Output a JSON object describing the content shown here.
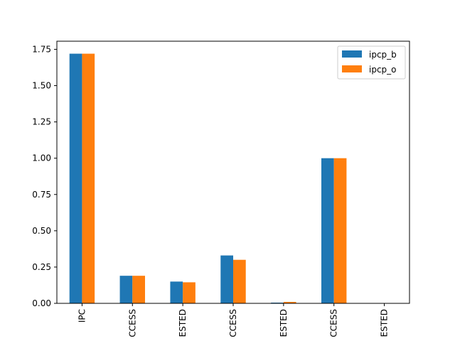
{
  "chart_data": {
    "type": "bar",
    "categories": [
      "IPC",
      "CCESS",
      "ESTED",
      "CCESS",
      "ESTED",
      "CCESS",
      "ESTED"
    ],
    "series": [
      {
        "name": "ipcp_b",
        "color": "#1f77b4",
        "values": [
          1.72,
          0.19,
          0.15,
          0.33,
          0.005,
          1.0,
          0.0
        ]
      },
      {
        "name": "ipcp_o",
        "color": "#ff7f0e",
        "values": [
          1.72,
          0.19,
          0.145,
          0.3,
          0.01,
          1.0,
          0.0
        ]
      }
    ],
    "title": "",
    "xlabel": "",
    "ylabel": "",
    "ylim": [
      0,
      1.806
    ],
    "yticks": [
      0.0,
      0.25,
      0.5,
      0.75,
      1.0,
      1.25,
      1.5,
      1.75
    ],
    "ytick_labels": [
      "0.00",
      "0.25",
      "0.50",
      "0.75",
      "1.00",
      "1.25",
      "1.50",
      "1.75"
    ],
    "legend": "top-right",
    "grid": false
  }
}
